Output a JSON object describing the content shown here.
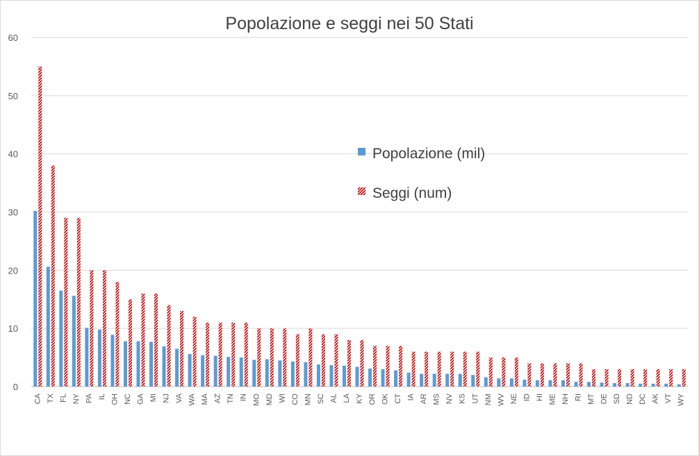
{
  "chart_data": {
    "type": "bar",
    "title": "Popolazione e seggi nei 50 Stati",
    "xlabel": "",
    "ylabel": "",
    "ylim": [
      0,
      60
    ],
    "yticks": [
      "0",
      "10",
      "20",
      "30",
      "40",
      "50",
      "60"
    ],
    "grid": true,
    "legend_position": "right",
    "categories": [
      "CA",
      "TX",
      "FL",
      "NY",
      "PA",
      "IL",
      "OH",
      "NC",
      "GA",
      "MI",
      "NJ",
      "VA",
      "WA",
      "MA",
      "AZ",
      "TN",
      "IN",
      "MO",
      "MD",
      "WI",
      "CO",
      "MN",
      "SC",
      "AL",
      "LA",
      "KY",
      "OR",
      "OK",
      "CT",
      "IA",
      "AR",
      "MS",
      "NV",
      "KS",
      "UT",
      "NM",
      "WV",
      "NE",
      "ID",
      "HI",
      "ME",
      "NH",
      "RI",
      "MT",
      "DE",
      "SD",
      "ND",
      "DC",
      "AK",
      "VT",
      "WY"
    ],
    "series": [
      {
        "name": "Popolazione (mil)",
        "color": "#5b9bd5",
        "values": [
          30.2,
          20.6,
          16.5,
          15.6,
          10.1,
          9.8,
          8.9,
          7.8,
          7.8,
          7.7,
          6.9,
          6.5,
          5.6,
          5.4,
          5.3,
          5.1,
          5.0,
          4.6,
          4.7,
          4.5,
          4.3,
          4.2,
          3.8,
          3.7,
          3.6,
          3.4,
          3.1,
          3.0,
          2.8,
          2.4,
          2.2,
          2.2,
          2.2,
          2.2,
          2.0,
          1.6,
          1.4,
          1.4,
          1.2,
          1.1,
          1.1,
          1.1,
          0.8,
          0.8,
          0.7,
          0.6,
          0.6,
          0.5,
          0.5,
          0.5,
          0.4
        ]
      },
      {
        "name": "Seggi (num)",
        "color": "#c00000",
        "values": [
          55,
          38,
          29,
          29,
          20,
          20,
          18,
          15,
          16,
          16,
          14,
          13,
          12,
          11,
          11,
          11,
          11,
          10,
          10,
          10,
          9,
          10,
          9,
          9,
          8,
          8,
          7,
          7,
          7,
          6,
          6,
          6,
          6,
          6,
          6,
          5,
          5,
          5,
          4,
          4,
          4,
          4,
          4,
          3,
          3,
          3,
          3,
          3,
          3,
          3,
          3
        ]
      }
    ]
  }
}
